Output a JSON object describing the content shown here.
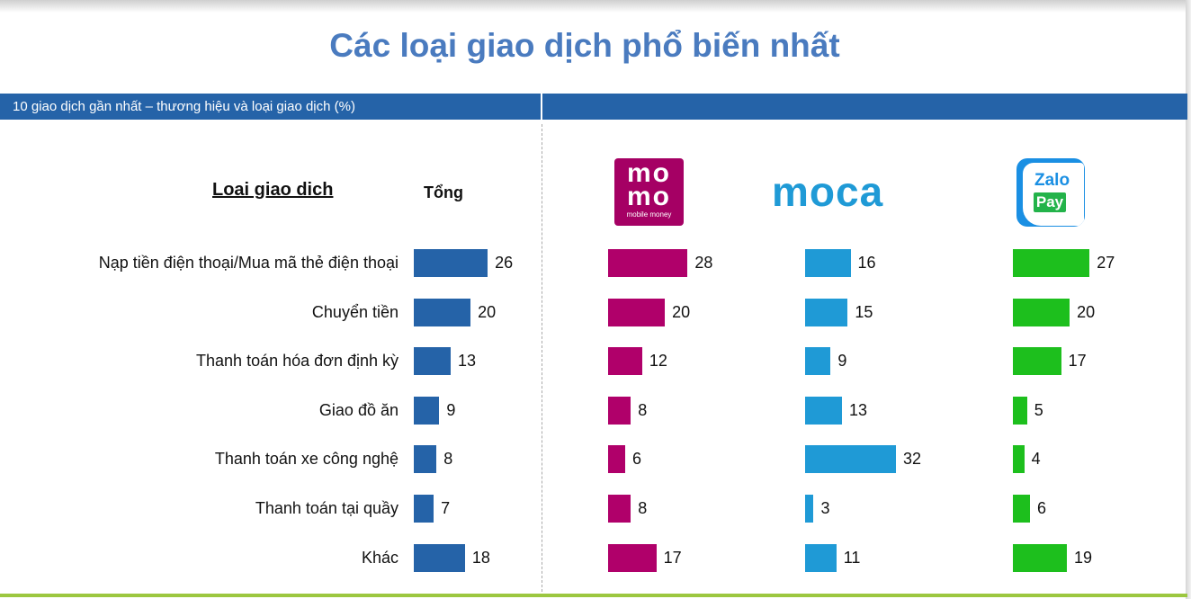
{
  "title": "Các loại giao dịch phổ biến nhất",
  "header_label": "10 giao dịch gần nhất – thương hiệu và loại giao dịch (%)",
  "column_headers": {
    "type": "Loai giao dich",
    "total": "Tổng"
  },
  "logos": {
    "momo": {
      "line1": "mo",
      "line2": "mo",
      "tagline": "mobile money"
    },
    "moca": {
      "text": "moca"
    },
    "zalopay": {
      "line1": "Zalo",
      "line2": "Pay"
    }
  },
  "colors": {
    "title": "#4a7bbf",
    "header_bar": "#2563a8",
    "total": "#2563a8",
    "momo": "#b0006a",
    "moca": "#1f9ad6",
    "zalopay": "#1dbf1d"
  },
  "chart_data": {
    "type": "bar",
    "orientation": "horizontal",
    "categories": [
      "Nạp tiền điện thoại/Mua mã thẻ điện thoại",
      "Chuyển tiền",
      "Thanh toán hóa đơn định kỳ",
      "Giao đồ ăn",
      "Thanh toán xe công nghệ",
      "Thanh toán  tại quầy",
      "Khác"
    ],
    "series": [
      {
        "name": "Tổng",
        "values": [
          26,
          20,
          13,
          9,
          8,
          7,
          18
        ]
      },
      {
        "values": [
          28,
          20,
          12,
          8,
          6,
          8,
          17
        ]
      },
      {
        "values": [
          16,
          15,
          9,
          13,
          32,
          3,
          11
        ]
      },
      {
        "values": [
          27,
          20,
          17,
          5,
          4,
          6,
          19
        ]
      }
    ],
    "xlim": [
      0,
      32
    ],
    "grid": false,
    "legend": "none"
  }
}
